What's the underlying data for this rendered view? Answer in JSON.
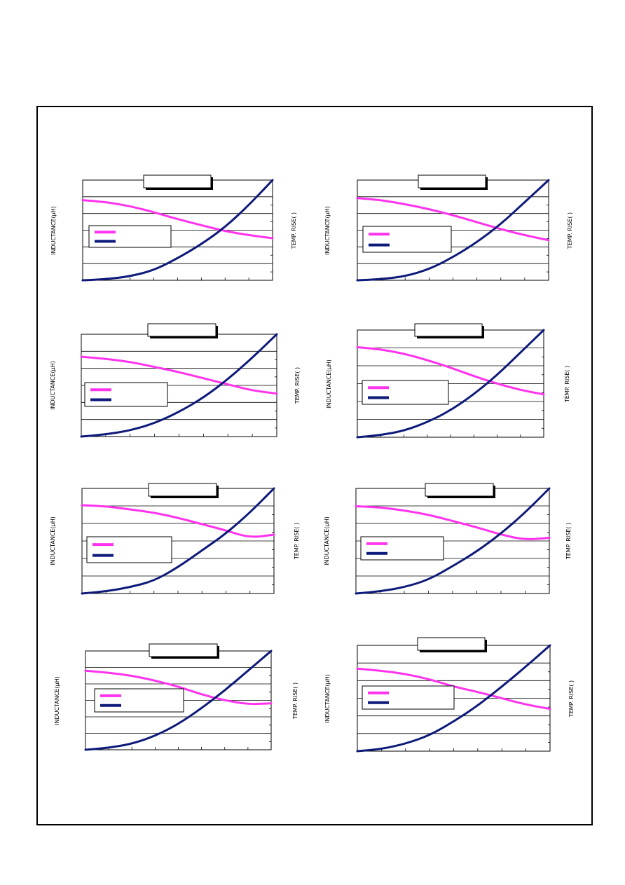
{
  "colors": {
    "inductance": "#ff33ee",
    "temp_rise": "#0d1a7a",
    "grid": "#000000"
  },
  "chart_data": [
    {
      "type": "line",
      "ylabel": "INDUCTANCE(μH)",
      "y2label": "TEMP. RISE(   )",
      "series": [
        {
          "color_key": "inductance",
          "y": [
            0.8,
            0.78,
            0.74,
            0.68,
            0.61,
            0.55,
            0.49,
            0.45,
            0.42
          ]
        },
        {
          "color_key": "temp_rise",
          "y": [
            0.0,
            0.01,
            0.04,
            0.1,
            0.22,
            0.36,
            0.53,
            0.75,
            1.0
          ]
        }
      ]
    },
    {
      "type": "line",
      "ylabel": "INDUCTANCE(μH)",
      "y2label": "TEMP. RISE(   )",
      "series": [
        {
          "color_key": "inductance",
          "y": [
            0.82,
            0.8,
            0.76,
            0.71,
            0.65,
            0.58,
            0.51,
            0.45,
            0.4
          ]
        },
        {
          "color_key": "temp_rise",
          "y": [
            0.0,
            0.01,
            0.04,
            0.11,
            0.23,
            0.38,
            0.56,
            0.78,
            1.0
          ]
        }
      ]
    },
    {
      "type": "line",
      "ylabel": "INDUCTANCE(μH)",
      "y2label": "TEMP. RISE(   )",
      "series": [
        {
          "color_key": "inductance",
          "y": [
            0.78,
            0.76,
            0.73,
            0.68,
            0.63,
            0.57,
            0.51,
            0.45,
            0.42
          ]
        },
        {
          "color_key": "temp_rise",
          "y": [
            0.0,
            0.02,
            0.06,
            0.13,
            0.24,
            0.38,
            0.56,
            0.77,
            1.0
          ]
        }
      ]
    },
    {
      "type": "line",
      "ylabel": "INDUCTANCE(μH)",
      "y2label": "TEMP. RISE(   )",
      "series": [
        {
          "color_key": "inductance",
          "y": [
            0.84,
            0.82,
            0.78,
            0.72,
            0.65,
            0.57,
            0.5,
            0.44,
            0.4
          ]
        },
        {
          "color_key": "temp_rise",
          "y": [
            0.0,
            0.02,
            0.06,
            0.14,
            0.25,
            0.4,
            0.58,
            0.79,
            1.0
          ]
        }
      ]
    },
    {
      "type": "line",
      "ylabel": "INDUCTANCE(μH)",
      "y2label": "TEMP. RISE(   )",
      "series": [
        {
          "color_key": "inductance",
          "y": [
            0.84,
            0.83,
            0.8,
            0.77,
            0.72,
            0.66,
            0.6,
            0.53,
            0.56
          ]
        },
        {
          "color_key": "temp_rise",
          "y": [
            0.0,
            0.02,
            0.06,
            0.12,
            0.25,
            0.41,
            0.57,
            0.77,
            1.0
          ]
        }
      ]
    },
    {
      "type": "line",
      "ylabel": "INDUCTANCE(μH)",
      "y2label": "TEMP. RISE(   )",
      "series": [
        {
          "color_key": "inductance",
          "y": [
            0.83,
            0.82,
            0.79,
            0.75,
            0.69,
            0.63,
            0.56,
            0.51,
            0.53
          ]
        },
        {
          "color_key": "temp_rise",
          "y": [
            0.0,
            0.02,
            0.06,
            0.13,
            0.26,
            0.4,
            0.57,
            0.77,
            1.0
          ]
        }
      ]
    },
    {
      "type": "line",
      "ylabel": "INDUCTANCE(μH)",
      "y2label": "TEMP. RISE(   )",
      "series": [
        {
          "color_key": "inductance",
          "y": [
            0.8,
            0.78,
            0.75,
            0.7,
            0.64,
            0.56,
            0.5,
            0.46,
            0.47
          ]
        },
        {
          "color_key": "temp_rise",
          "y": [
            0.0,
            0.02,
            0.06,
            0.14,
            0.26,
            0.42,
            0.6,
            0.8,
            1.0
          ]
        }
      ]
    },
    {
      "type": "line",
      "ylabel": "INDUCTANCE(μH)",
      "y2label": "TEMP. RISE(   )",
      "series": [
        {
          "color_key": "inductance",
          "y": [
            0.78,
            0.76,
            0.73,
            0.68,
            0.61,
            0.56,
            0.5,
            0.44,
            0.4
          ]
        },
        {
          "color_key": "temp_rise",
          "y": [
            0.0,
            0.02,
            0.07,
            0.15,
            0.28,
            0.43,
            0.61,
            0.8,
            1.0
          ]
        }
      ]
    }
  ]
}
